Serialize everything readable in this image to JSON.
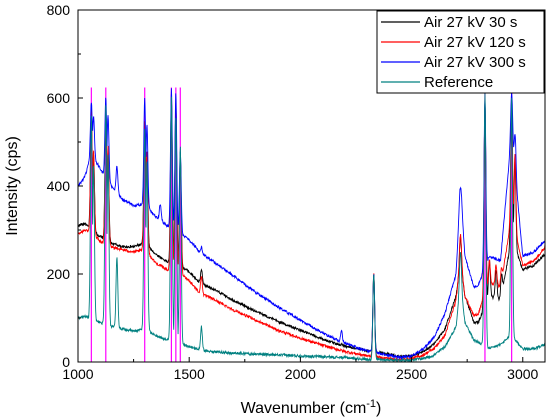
{
  "chart_data": {
    "type": "line",
    "title": "",
    "xlabel": "Wavenumber (cm",
    "xlabel_sup": "-1",
    "xlabel_close": ")",
    "ylabel": "Intensity (cps)",
    "xlim": [
      1000,
      3100
    ],
    "ylim": [
      0,
      800
    ],
    "x_ticks": [
      1000,
      1500,
      2000,
      2500,
      3000
    ],
    "y_ticks": [
      0,
      200,
      400,
      600,
      800
    ],
    "grid": false,
    "legend_position": "top-right",
    "series": [
      {
        "name": "Air 27 kV 30 s",
        "color": "#000000",
        "baseline": [
          [
            1000,
            310
          ],
          [
            1030,
            315
          ],
          [
            1060,
            300
          ],
          [
            1100,
            285
          ],
          [
            1150,
            270
          ],
          [
            1200,
            262
          ],
          [
            1250,
            262
          ],
          [
            1300,
            270
          ],
          [
            1350,
            245
          ],
          [
            1400,
            228
          ],
          [
            1450,
            222
          ],
          [
            1500,
            205
          ],
          [
            1550,
            178
          ],
          [
            1600,
            168
          ],
          [
            1700,
            140
          ],
          [
            1800,
            115
          ],
          [
            1900,
            92
          ],
          [
            2000,
            72
          ],
          [
            2100,
            52
          ],
          [
            2200,
            36
          ],
          [
            2300,
            26
          ],
          [
            2400,
            18
          ],
          [
            2450,
            12
          ],
          [
            2500,
            14
          ],
          [
            2550,
            22
          ],
          [
            2600,
            40
          ],
          [
            2650,
            75
          ],
          [
            2700,
            150
          ],
          [
            2720,
            225
          ],
          [
            2740,
            150
          ],
          [
            2780,
            90
          ],
          [
            2800,
            90
          ],
          [
            2850,
            150
          ],
          [
            2900,
            140
          ],
          [
            2950,
            280
          ],
          [
            3000,
            210
          ],
          [
            3050,
            220
          ],
          [
            3100,
            245
          ]
        ],
        "peaks": [
          [
            1060,
            560
          ],
          [
            1070,
            470
          ],
          [
            1125,
            540
          ],
          [
            1135,
            480
          ],
          [
            1300,
            540
          ],
          [
            1310,
            470
          ],
          [
            1420,
            600
          ],
          [
            1440,
            580
          ],
          [
            1460,
            470
          ],
          [
            1555,
            210
          ],
          [
            2185,
            40
          ],
          [
            2330,
            200
          ],
          [
            2720,
            285
          ],
          [
            2830,
            590
          ],
          [
            2850,
            230
          ],
          [
            2880,
            210
          ],
          [
            2905,
            200
          ],
          [
            2950,
            560
          ],
          [
            2965,
            460
          ]
        ]
      },
      {
        "name": "Air 27 kV 120 s",
        "color": "#ff0000",
        "baseline": [
          [
            1000,
            290
          ],
          [
            1030,
            300
          ],
          [
            1060,
            295
          ],
          [
            1100,
            275
          ],
          [
            1150,
            262
          ],
          [
            1200,
            255
          ],
          [
            1250,
            250
          ],
          [
            1300,
            255
          ],
          [
            1350,
            225
          ],
          [
            1400,
            210
          ],
          [
            1450,
            205
          ],
          [
            1500,
            185
          ],
          [
            1550,
            155
          ],
          [
            1600,
            145
          ],
          [
            1700,
            118
          ],
          [
            1800,
            95
          ],
          [
            1900,
            72
          ],
          [
            2000,
            54
          ],
          [
            2100,
            38
          ],
          [
            2200,
            24
          ],
          [
            2300,
            14
          ],
          [
            2400,
            8
          ],
          [
            2450,
            5
          ],
          [
            2500,
            8
          ],
          [
            2550,
            15
          ],
          [
            2600,
            30
          ],
          [
            2650,
            60
          ],
          [
            2700,
            140
          ],
          [
            2720,
            235
          ],
          [
            2740,
            150
          ],
          [
            2780,
            105
          ],
          [
            2800,
            110
          ],
          [
            2850,
            180
          ],
          [
            2900,
            170
          ],
          [
            2950,
            330
          ],
          [
            3000,
            220
          ],
          [
            3050,
            230
          ],
          [
            3100,
            260
          ]
        ],
        "peaks": [
          [
            1060,
            575
          ],
          [
            1070,
            480
          ],
          [
            1125,
            550
          ],
          [
            1135,
            490
          ],
          [
            1175,
            240
          ],
          [
            1300,
            545
          ],
          [
            1310,
            480
          ],
          [
            1420,
            610
          ],
          [
            1440,
            590
          ],
          [
            1460,
            470
          ],
          [
            1555,
            195
          ],
          [
            2330,
            200
          ],
          [
            2720,
            290
          ],
          [
            2830,
            590
          ],
          [
            2850,
            230
          ],
          [
            2880,
            220
          ],
          [
            2905,
            215
          ],
          [
            2950,
            585
          ],
          [
            2965,
            470
          ]
        ]
      },
      {
        "name": "Air 27 kV 300 s",
        "color": "#0000ff",
        "baseline": [
          [
            1000,
            400
          ],
          [
            1030,
            420
          ],
          [
            1060,
            470
          ],
          [
            1100,
            440
          ],
          [
            1150,
            400
          ],
          [
            1200,
            370
          ],
          [
            1250,
            355
          ],
          [
            1300,
            360
          ],
          [
            1350,
            330
          ],
          [
            1400,
            310
          ],
          [
            1450,
            295
          ],
          [
            1500,
            278
          ],
          [
            1550,
            248
          ],
          [
            1600,
            232
          ],
          [
            1700,
            195
          ],
          [
            1800,
            158
          ],
          [
            1900,
            125
          ],
          [
            2000,
            95
          ],
          [
            2100,
            66
          ],
          [
            2200,
            42
          ],
          [
            2300,
            25
          ],
          [
            2400,
            15
          ],
          [
            2450,
            10
          ],
          [
            2500,
            14
          ],
          [
            2550,
            28
          ],
          [
            2600,
            55
          ],
          [
            2650,
            110
          ],
          [
            2700,
            200
          ],
          [
            2720,
            395
          ],
          [
            2740,
            240
          ],
          [
            2780,
            170
          ],
          [
            2800,
            175
          ],
          [
            2850,
            240
          ],
          [
            2900,
            230
          ],
          [
            2950,
            520
          ],
          [
            3000,
            240
          ],
          [
            3050,
            250
          ],
          [
            3100,
            275
          ]
        ],
        "peaks": [
          [
            1060,
            590
          ],
          [
            1070,
            560
          ],
          [
            1125,
            600
          ],
          [
            1135,
            560
          ],
          [
            1175,
            445
          ],
          [
            1300,
            600
          ],
          [
            1310,
            540
          ],
          [
            1370,
            360
          ],
          [
            1420,
            620
          ],
          [
            1440,
            610
          ],
          [
            1460,
            480
          ],
          [
            1555,
            260
          ],
          [
            2185,
            70
          ],
          [
            2330,
            200
          ],
          [
            2720,
            395
          ],
          [
            2830,
            600
          ],
          [
            2950,
            610
          ],
          [
            2965,
            520
          ]
        ]
      },
      {
        "name": "Reference",
        "color": "#008080",
        "baseline": [
          [
            1000,
            100
          ],
          [
            1030,
            105
          ],
          [
            1060,
            95
          ],
          [
            1100,
            90
          ],
          [
            1150,
            80
          ],
          [
            1200,
            75
          ],
          [
            1250,
            70
          ],
          [
            1300,
            75
          ],
          [
            1350,
            60
          ],
          [
            1400,
            50
          ],
          [
            1450,
            42
          ],
          [
            1500,
            35
          ],
          [
            1550,
            28
          ],
          [
            1600,
            24
          ],
          [
            1700,
            20
          ],
          [
            1800,
            18
          ],
          [
            1900,
            16
          ],
          [
            2000,
            14
          ],
          [
            2100,
            12
          ],
          [
            2200,
            10
          ],
          [
            2300,
            6
          ],
          [
            2400,
            5
          ],
          [
            2450,
            4
          ],
          [
            2500,
            5
          ],
          [
            2550,
            8
          ],
          [
            2600,
            15
          ],
          [
            2650,
            35
          ],
          [
            2700,
            80
          ],
          [
            2720,
            180
          ],
          [
            2740,
            90
          ],
          [
            2780,
            50
          ],
          [
            2800,
            45
          ],
          [
            2850,
            30
          ],
          [
            2900,
            40
          ],
          [
            2950,
            60
          ],
          [
            3000,
            30
          ],
          [
            3050,
            30
          ],
          [
            3100,
            40
          ]
        ],
        "peaks": [
          [
            1060,
            560
          ],
          [
            1070,
            450
          ],
          [
            1125,
            590
          ],
          [
            1135,
            470
          ],
          [
            1175,
            240
          ],
          [
            1300,
            530
          ],
          [
            1310,
            460
          ],
          [
            1420,
            600
          ],
          [
            1440,
            560
          ],
          [
            1460,
            490
          ],
          [
            1555,
            80
          ],
          [
            2330,
            200
          ],
          [
            2720,
            250
          ],
          [
            2830,
            610
          ],
          [
            2950,
            600
          ]
        ]
      }
    ],
    "truncated_lines": [
      {
        "x": 1060,
        "color": "#ff00ff"
      },
      {
        "x": 1125,
        "color": "#ff00ff"
      },
      {
        "x": 1300,
        "color": "#ff00ff"
      },
      {
        "x": 1420,
        "color": "#ff00ff"
      },
      {
        "x": 1440,
        "color": "#ff00ff"
      },
      {
        "x": 1460,
        "color": "#ff00ff"
      },
      {
        "x": 2830,
        "color": "#ff00ff"
      },
      {
        "x": 2950,
        "color": "#ff00ff"
      }
    ]
  }
}
